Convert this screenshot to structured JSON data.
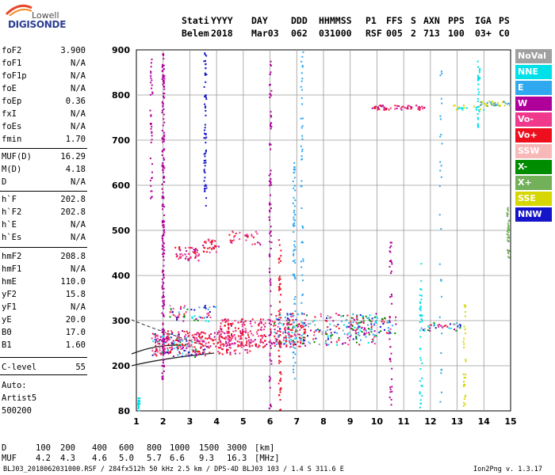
{
  "logo": {
    "line1": "Lowell",
    "line2": "DIGISONDE"
  },
  "header": {
    "row1": [
      "Stati",
      "YYYY",
      "DAY",
      "DDD",
      "HHMMSS",
      "P1",
      "FFS",
      "S",
      "AXN",
      "PPS",
      "IGA",
      "PS"
    ],
    "row2": [
      "Belem",
      "2018",
      "Mar03",
      "062",
      "031000",
      "RSF",
      "005",
      "2",
      "713",
      "100",
      "03+",
      "C0"
    ]
  },
  "params": [
    {
      "name": "foF2",
      "value": "3.900"
    },
    {
      "name": "foF1",
      "value": "N/A"
    },
    {
      "name": "foF1p",
      "value": "N/A"
    },
    {
      "name": "foE",
      "value": "N/A"
    },
    {
      "name": "foEp",
      "value": "0.36"
    },
    {
      "name": "fxI",
      "value": "N/A"
    },
    {
      "name": "foEs",
      "value": "N/A"
    },
    {
      "name": "fmin",
      "value": "1.70"
    },
    {
      "name": "MUF(D)",
      "value": "16.29"
    },
    {
      "name": "M(D)",
      "value": "4.18"
    },
    {
      "name": "D",
      "value": "N/A"
    },
    {
      "name": "h`F",
      "value": "202.8"
    },
    {
      "name": "h`F2",
      "value": "202.8"
    },
    {
      "name": "h`E",
      "value": "N/A"
    },
    {
      "name": "h`Es",
      "value": "N/A"
    },
    {
      "name": "hmF2",
      "value": "208.8"
    },
    {
      "name": "hmF1",
      "value": "N/A"
    },
    {
      "name": "hmE",
      "value": "110.0"
    },
    {
      "name": "yF2",
      "value": "15.8"
    },
    {
      "name": "yF1",
      "value": "N/A"
    },
    {
      "name": "yE",
      "value": "20.0"
    },
    {
      "name": "B0",
      "value": "17.0"
    },
    {
      "name": "B1",
      "value": "1.60"
    },
    {
      "name": "C-level",
      "value": "55"
    }
  ],
  "auto": {
    "line1": "Auto:",
    "line2": "Artist5",
    "line3": "500200"
  },
  "legend": [
    {
      "label": "NoVal",
      "color": "#a0a0a0"
    },
    {
      "label": "NNE",
      "color": "#00e0e8"
    },
    {
      "label": "E",
      "color": "#2fa8f0"
    },
    {
      "label": "W",
      "color": "#b0009a"
    },
    {
      "label": "Vo-",
      "color": "#f0388c"
    },
    {
      "label": "Vo+",
      "color": "#ee0f1e"
    },
    {
      "label": "SSW",
      "color": "#f9b8b8"
    },
    {
      "label": "X-",
      "color": "#008c00"
    },
    {
      "label": "X+",
      "color": "#73b05a"
    },
    {
      "label": "SSE",
      "color": "#d6d600"
    },
    {
      "label": "NNW",
      "color": "#1414c8"
    }
  ],
  "chart_data": {
    "type": "scatter",
    "x_ticks": [
      "1",
      "2",
      "3",
      "4",
      "5",
      "6",
      "7",
      "8",
      "9",
      "10",
      "11",
      "12",
      "13",
      "14",
      "15"
    ],
    "y_ticks": [
      "80",
      "200",
      "300",
      "400",
      "500",
      "600",
      "700",
      "800",
      "900"
    ],
    "xlim": [
      1,
      15
    ],
    "ylim": [
      80,
      900
    ],
    "grid": true
  },
  "bottom": {
    "d_label": "D",
    "d_values": [
      "100",
      "200",
      "400",
      "600",
      "800",
      "1000",
      "1500",
      "3000",
      "[km]"
    ],
    "muf_label": "MUF",
    "muf_values": [
      "4.2",
      "4.3",
      "4.6",
      "5.0",
      "5.7",
      "6.6",
      "9.3",
      "16.3",
      "[MHz]"
    ]
  },
  "footer": {
    "left": "BLJ03_2018062031000.RSF / 284fx512h 50 kHz 2.5 km / DPS-4D BLJ03 103 / 1.4 S 311.6 E",
    "right": "Ion2Png v. 1.3.17"
  }
}
